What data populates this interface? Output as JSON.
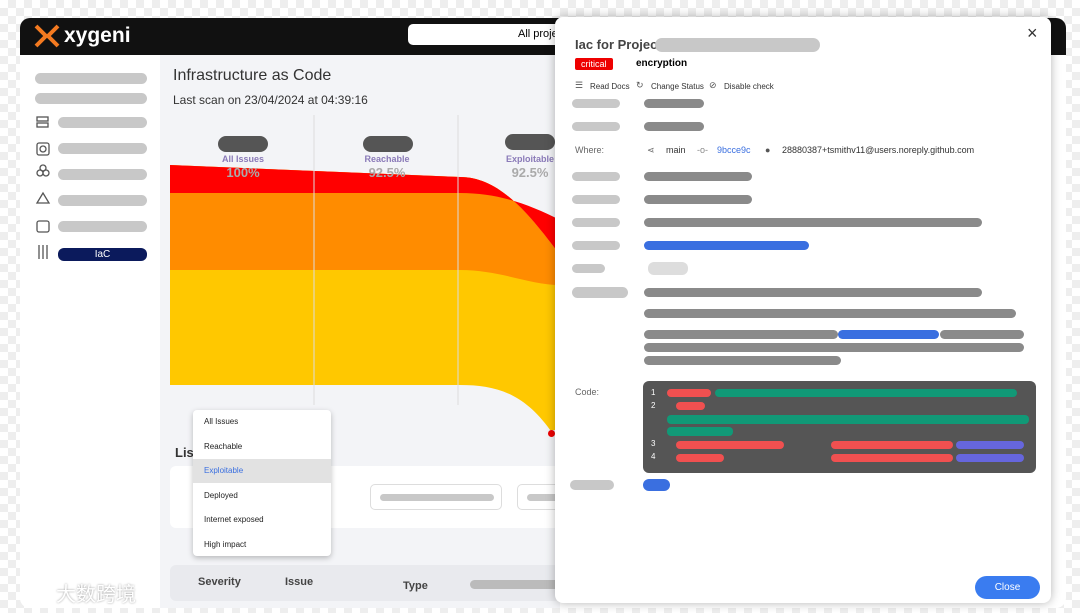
{
  "header": {
    "logo": "xygeni",
    "project_selector": "All proje"
  },
  "sidebar": {
    "active_item": "IaC"
  },
  "main": {
    "title": "Infrastructure as Code",
    "last_scan": "Last scan on 23/04/2024 at 04:39:16",
    "funnel": [
      {
        "label": "All Issues",
        "value": "100%"
      },
      {
        "label": "Reachable",
        "value": "92.5%"
      },
      {
        "label": "Exploitable",
        "value": "92.5%"
      }
    ],
    "list_title": "Lis",
    "dropdown": [
      "All Issues",
      "Reachable",
      "Exploitable",
      "Deployed",
      "Internet exposed",
      "High impact"
    ],
    "table_headers": [
      "Severity",
      "Issue",
      "Type"
    ]
  },
  "panel": {
    "title": "Iac for Project",
    "severity": "critical",
    "category": "encryption",
    "actions": [
      "Read Docs",
      "Change Status",
      "Disable check"
    ],
    "where_label": "Where:",
    "branch": "main",
    "commit": "9bcce9c",
    "author": "28880387+tsmithv11@users.noreply.github.com",
    "code_label": "Code:",
    "line_numbers": [
      "1",
      "2",
      "3",
      "4"
    ],
    "close": "Close"
  },
  "watermark": "大数跨境"
}
